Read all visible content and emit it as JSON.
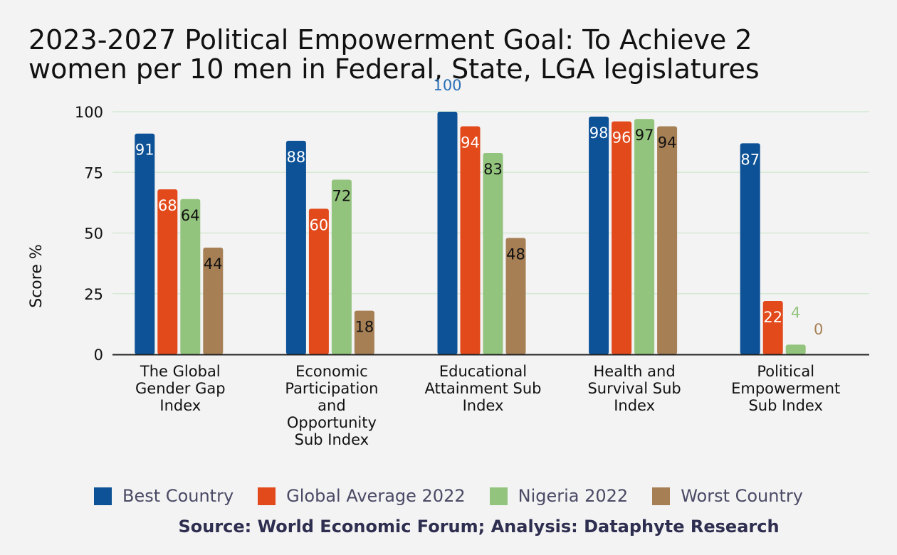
{
  "chart_data": {
    "type": "bar",
    "title_lines": [
      "2023-2027 Political Empowerment Goal: To Achieve 2",
      "women per 10 men in Federal, State, LGA legislatures"
    ],
    "ylabel": "Score %",
    "xlabel": "",
    "ylim": [
      0,
      100
    ],
    "yticks": [
      0,
      25,
      50,
      75,
      100
    ],
    "grid": true,
    "legend_position": "bottom",
    "categories": [
      [
        "The Global",
        "Gender Gap",
        "Index"
      ],
      [
        "Economic",
        "Participation",
        "and",
        "Opportunity",
        "Sub Index"
      ],
      [
        "Educational",
        "Attainment Sub",
        "Index"
      ],
      [
        "Health and",
        "Survival Sub",
        "Index"
      ],
      [
        "Political",
        "Empowerment",
        "Sub Index"
      ]
    ],
    "series": [
      {
        "name": "Best Country",
        "color": "#0d5196",
        "values": [
          91,
          88,
          100,
          98,
          87
        ],
        "labels": [
          "91",
          "88",
          "100",
          "98",
          "87"
        ]
      },
      {
        "name": "Global Average 2022",
        "color": "#e2491b",
        "values": [
          68,
          60,
          94,
          96,
          22
        ],
        "labels": [
          "68",
          "60",
          "94",
          "96",
          "22"
        ]
      },
      {
        "name": "Nigeria 2022",
        "color": "#93c47d",
        "values": [
          64,
          72,
          83,
          97,
          4
        ],
        "labels": [
          "64",
          "72",
          "83",
          "97",
          "4"
        ]
      },
      {
        "name": "Worst Country",
        "color": "#a67f55",
        "values": [
          44,
          18,
          48,
          94,
          0
        ],
        "labels": [
          "44",
          "18",
          "48",
          "94",
          "0"
        ]
      }
    ],
    "source": "Source: World Economic Forum; Analysis: Dataphyte Research"
  }
}
